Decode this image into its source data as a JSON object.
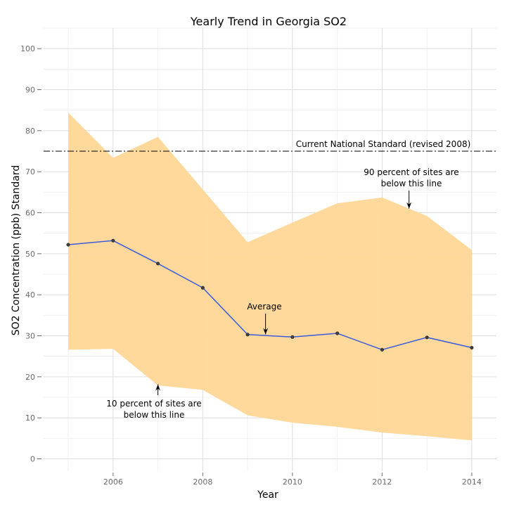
{
  "chart_data": {
    "type": "line",
    "title": "Yearly Trend in Georgia SO2",
    "xlabel": "Year",
    "ylabel": "SO2 Concentration (ppb) Standard",
    "xlim": [
      2004.45,
      2014.55
    ],
    "ylim": [
      -3,
      105
    ],
    "x_ticks": [
      2006,
      2008,
      2010,
      2012,
      2014
    ],
    "y_ticks": [
      0,
      10,
      20,
      30,
      40,
      50,
      60,
      70,
      80,
      90,
      100
    ],
    "grid": true,
    "x": [
      2005,
      2006,
      2007,
      2008,
      2009,
      2010,
      2011,
      2012,
      2013,
      2014
    ],
    "series": [
      {
        "values": [
          52.2,
          53.2,
          47.6,
          41.7,
          30.3,
          29.7,
          30.6,
          26.6,
          29.6,
          27.1
        ],
        "color": "#3b5bdb"
      }
    ],
    "band": {
      "upper": [
        84.4,
        73.4,
        78.5,
        65.7,
        52.8,
        57.6,
        62.3,
        63.7,
        59.2,
        50.9
      ],
      "lower": [
        26.6,
        26.8,
        17.9,
        16.8,
        10.6,
        8.8,
        7.8,
        6.4,
        5.5,
        4.5
      ],
      "color": "#ffd797"
    },
    "reference_line": {
      "value": 75,
      "label": "Current National Standard (revised 2008)"
    },
    "annotations": [
      {
        "text_lines": [
          "90 percent of sites are",
          "below this line"
        ],
        "arrow_x": 2012.6,
        "arrow_y": 61
      },
      {
        "text_lines": [
          "Average"
        ],
        "arrow_x": 2009.4,
        "arrow_y": 30
      },
      {
        "text_lines": [
          "10 percent of sites are",
          "below this line"
        ],
        "arrow_x": 2007,
        "arrow_y": 18.5
      }
    ]
  }
}
